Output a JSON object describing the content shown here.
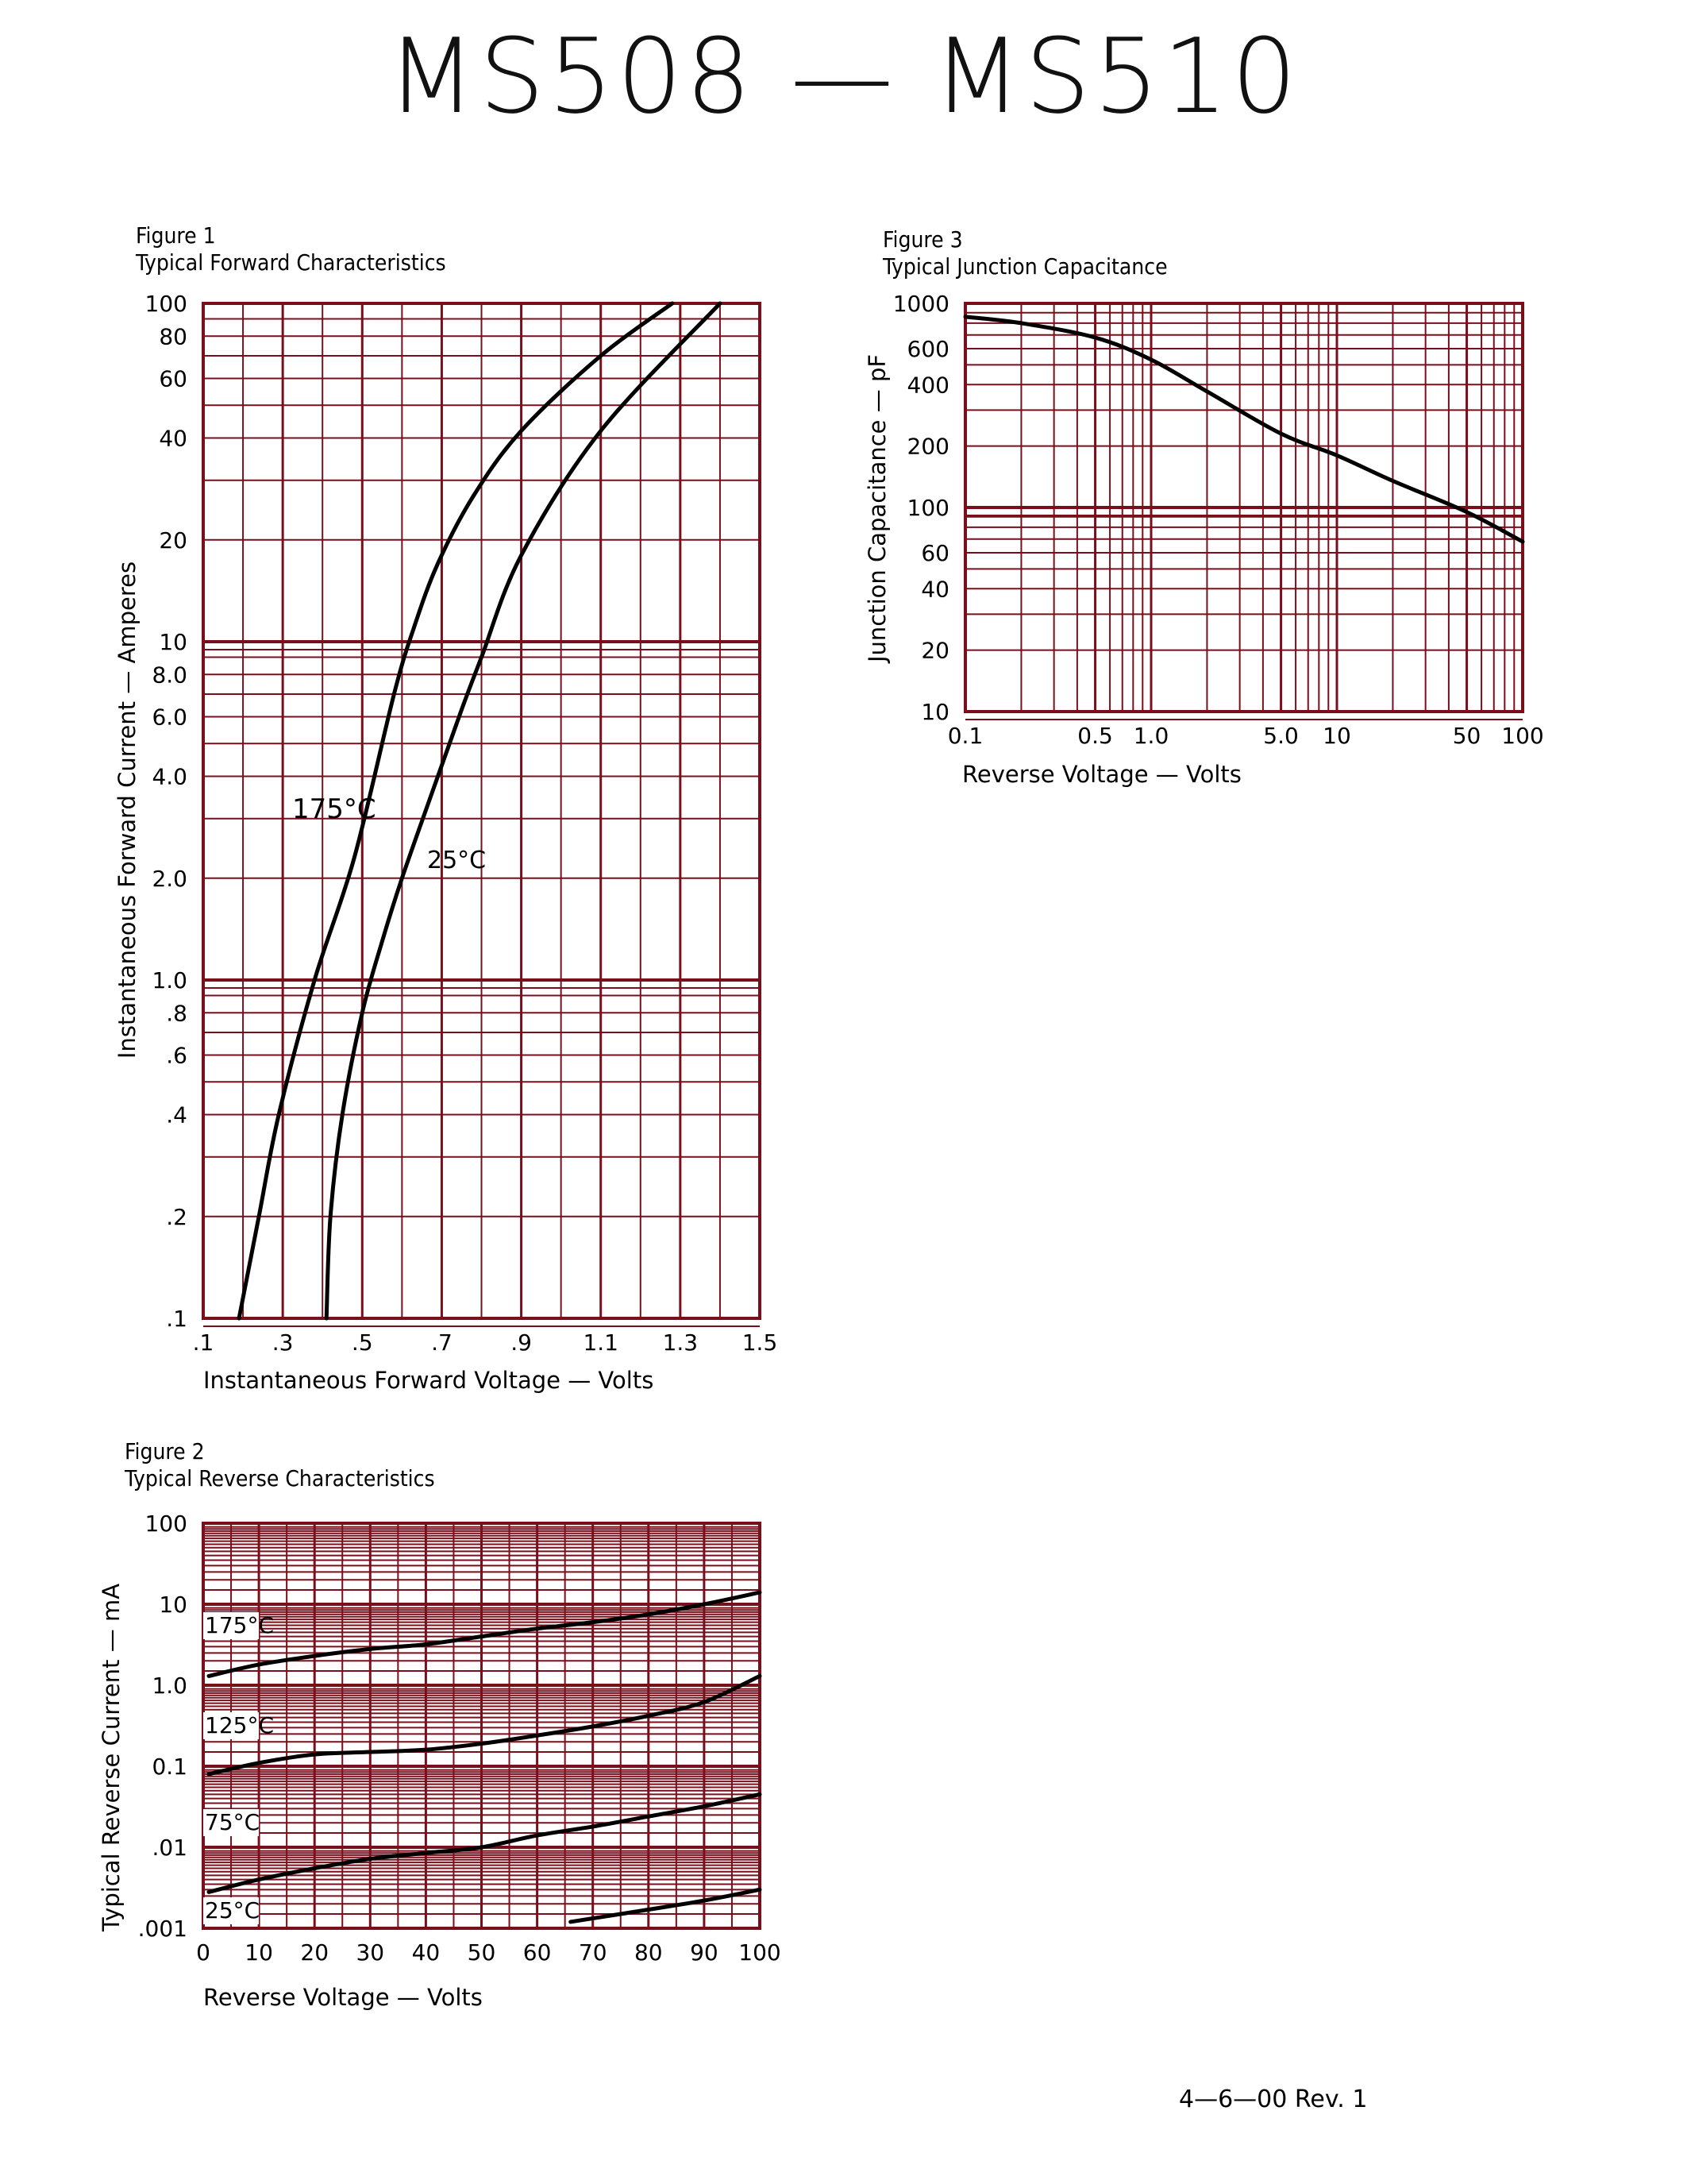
{
  "title": "MS508  —  MS510",
  "revision": "4—6—00    Rev. 1",
  "colors": {
    "grid": "#7a0f1c",
    "curve": "#000000",
    "background": "#ffffff"
  },
  "chart_data": [
    {
      "id": "fig1",
      "type": "line",
      "figure_label": "Figure 1",
      "title": "Typical Forward Characteristics",
      "xlabel": "Instantaneous Forward Voltage — Volts",
      "ylabel": "Instantaneous Forward Current — Amperes",
      "xscale": "linear",
      "yscale": "log",
      "xlim": [
        0.1,
        1.5
      ],
      "ylim": [
        0.1,
        100
      ],
      "xticks": [
        0.1,
        0.3,
        0.5,
        0.7,
        0.9,
        1.1,
        1.3,
        1.5
      ],
      "xtick_labels": [
        ".1",
        ".3",
        ".5",
        ".7",
        ".9",
        "1.1",
        "1.3",
        "1.5"
      ],
      "yticks": [
        0.1,
        0.2,
        0.4,
        0.6,
        0.8,
        1,
        2,
        4,
        6,
        8,
        10,
        20,
        40,
        60,
        80,
        100
      ],
      "ytick_labels": [
        ".1",
        ".2",
        ".4",
        ".6",
        ".8",
        "1.0",
        "2.0",
        "4.0",
        "6.0",
        "8.0",
        "10",
        "20",
        "40",
        "60",
        "80",
        "100"
      ],
      "grid": true,
      "series": [
        {
          "name": "175°C",
          "label": "175°C",
          "x": [
            0.19,
            0.24,
            0.29,
            0.38,
            0.48,
            0.58,
            0.63,
            0.69,
            0.78,
            0.9,
            1.1,
            1.28
          ],
          "y": [
            0.1,
            0.2,
            0.4,
            1.0,
            2.3,
            7,
            11,
            17,
            27,
            42,
            70,
            100
          ]
        },
        {
          "name": "25°C",
          "label": "25°C",
          "x": [
            0.41,
            0.42,
            0.45,
            0.5,
            0.55,
            0.6,
            0.68,
            0.75,
            0.8,
            0.9,
            1.1,
            1.4
          ],
          "y": [
            0.1,
            0.2,
            0.4,
            0.8,
            1.3,
            2.0,
            3.7,
            6.3,
            9,
            18,
            42,
            100
          ]
        }
      ]
    },
    {
      "id": "fig2",
      "type": "line",
      "figure_label": "Figure 2",
      "title": "Typical Reverse Characteristics",
      "xlabel": "Reverse Voltage — Volts",
      "ylabel": "Typical Reverse Current — mA",
      "xscale": "linear",
      "yscale": "log",
      "xlim": [
        0,
        100
      ],
      "ylim": [
        0.001,
        100
      ],
      "xticks": [
        0,
        10,
        20,
        30,
        40,
        50,
        60,
        70,
        80,
        90,
        100
      ],
      "xtick_labels": [
        "0",
        "10",
        "20",
        "30",
        "40",
        "50",
        "60",
        "70",
        "80",
        "90",
        "100"
      ],
      "yticks": [
        0.001,
        0.01,
        0.1,
        1,
        10,
        100
      ],
      "ytick_labels": [
        ".001",
        ".01",
        "0.1",
        "1.0",
        "10",
        "100"
      ],
      "grid": true,
      "series": [
        {
          "name": "175°C",
          "label": "175°C",
          "x": [
            1,
            10,
            20,
            30,
            40,
            50,
            60,
            70,
            80,
            90,
            100
          ],
          "y": [
            1.3,
            1.8,
            2.3,
            2.8,
            3.2,
            4.0,
            5.0,
            6.0,
            7.5,
            10.0,
            14.0
          ]
        },
        {
          "name": "125°C",
          "label": "125°C",
          "x": [
            1,
            10,
            20,
            30,
            40,
            50,
            60,
            70,
            80,
            90,
            100
          ],
          "y": [
            0.08,
            0.11,
            0.14,
            0.15,
            0.16,
            0.19,
            0.24,
            0.31,
            0.42,
            0.62,
            1.3
          ]
        },
        {
          "name": "75°C",
          "label": "75°C",
          "x": [
            1,
            10,
            20,
            30,
            40,
            50,
            60,
            70,
            80,
            90,
            100
          ],
          "y": [
            0.0028,
            0.004,
            0.0055,
            0.0072,
            0.0085,
            0.01,
            0.014,
            0.018,
            0.024,
            0.032,
            0.045
          ]
        },
        {
          "name": "25°C",
          "label": "25°C",
          "x": [
            66,
            80,
            90,
            100
          ],
          "y": [
            0.0012,
            0.0017,
            0.0022,
            0.003
          ]
        }
      ]
    },
    {
      "id": "fig3",
      "type": "line",
      "figure_label": "Figure 3",
      "title": "Typical Junction Capacitance",
      "xlabel": "Reverse Voltage — Volts",
      "ylabel": "Junction Capacitance — pF",
      "xscale": "log",
      "yscale": "log",
      "xlim": [
        0.1,
        100
      ],
      "ylim": [
        10,
        1000
      ],
      "xticks": [
        0.1,
        0.5,
        1.0,
        5.0,
        10,
        50,
        100
      ],
      "xtick_labels": [
        "0.1",
        "0.5",
        "1.0",
        "5.0",
        "10",
        "50",
        "100"
      ],
      "yticks": [
        10,
        20,
        40,
        60,
        100,
        200,
        400,
        600,
        1000
      ],
      "ytick_labels": [
        "10",
        "20",
        "40",
        "60",
        "100",
        "200",
        "400",
        "600",
        "1000"
      ],
      "grid": true,
      "series": [
        {
          "name": "Capacitance",
          "x": [
            0.1,
            0.2,
            0.5,
            1.0,
            2.0,
            5.0,
            10,
            20,
            50,
            100
          ],
          "y": [
            860,
            800,
            680,
            530,
            370,
            230,
            180,
            135,
            95,
            68
          ]
        }
      ]
    }
  ]
}
